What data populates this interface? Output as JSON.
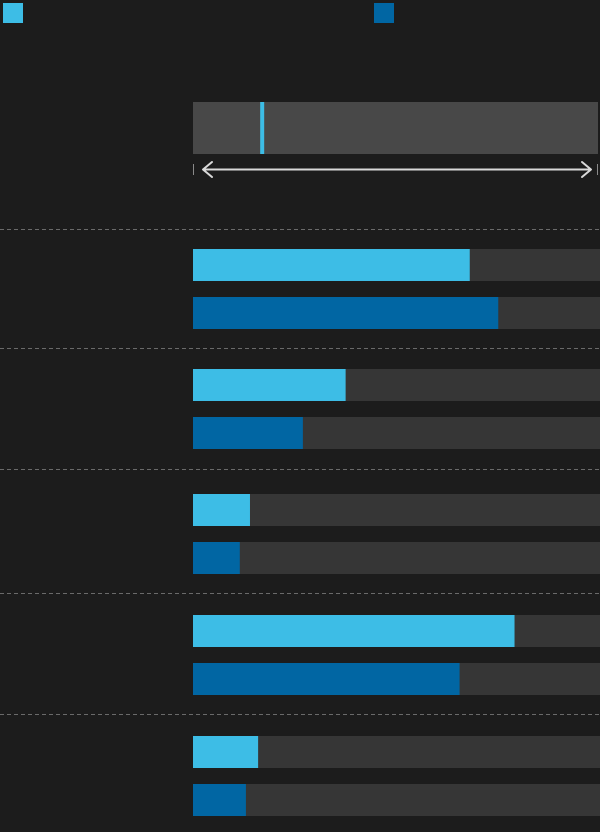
{
  "colors": {
    "background": "#1c1c1c",
    "series_a": "#3dbde6",
    "series_b": "#0166a3",
    "track": "#363636",
    "range_track": "#484848",
    "axis": "#d9d9d9",
    "separator": "#6a6a6a"
  },
  "legend": [
    {
      "color": "#3dbde6"
    },
    {
      "color": "#0166a3"
    }
  ],
  "chart_data": {
    "type": "bar",
    "orientation": "horizontal",
    "xlim": [
      0,
      100
    ],
    "grid": false,
    "legend_position": "top",
    "range_selector": {
      "marker": 17
    },
    "categories": [
      "",
      "",
      "",
      "",
      ""
    ],
    "series": [
      {
        "color": "#3dbde6",
        "values": [
          68,
          37.5,
          14,
          79,
          16
        ]
      },
      {
        "color": "#0166a3",
        "values": [
          75,
          27,
          11.5,
          65.5,
          13
        ]
      }
    ]
  }
}
